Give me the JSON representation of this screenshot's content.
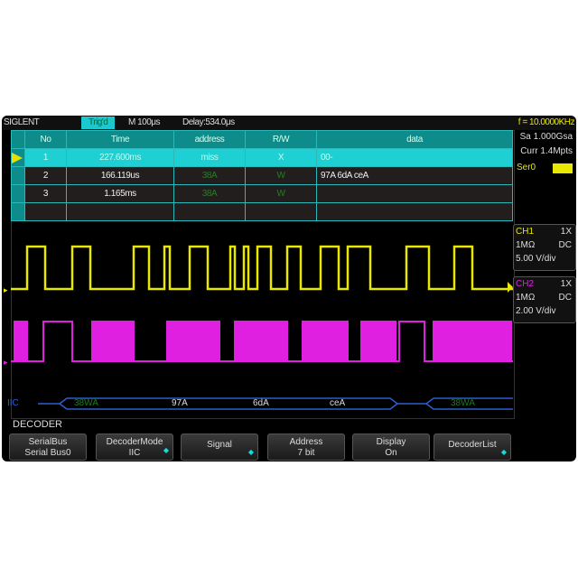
{
  "header": {
    "brand": "SIGLENT",
    "trig": "Trig'd",
    "timebase": "M 100μs",
    "delay": "Delay:534.0μs",
    "freq": "f = 10.0000KHz"
  },
  "table": {
    "headers": [
      "No",
      "Time",
      "address",
      "R/W",
      "data"
    ],
    "rows": [
      [
        "1",
        "227.600ms",
        "miss",
        "X",
        "00-"
      ],
      [
        "2",
        "166.119us",
        "38A",
        "W",
        "97A 6dA ceA"
      ],
      [
        "3",
        "1.165ms",
        "38A",
        "W",
        ""
      ]
    ]
  },
  "right": {
    "sa": "Sa 1.000Gsa",
    "curr": "Curr 1.4Mpts",
    "ser": "Ser0",
    "ch1": {
      "name": "CH1",
      "probe": "1X",
      "imp": "1MΩ",
      "coupling": "DC",
      "scale": "5.00 V/div"
    },
    "ch2": {
      "name": "CH2",
      "probe": "1X",
      "imp": "1MΩ",
      "coupling": "DC",
      "scale": "2.00 V/div"
    }
  },
  "bus": {
    "label": "IIC",
    "segments": [
      "38WA",
      "97A",
      "6dA",
      "ceA",
      "38WA"
    ]
  },
  "colors": {
    "ch1": "#e8e800",
    "ch2": "#e020e0",
    "bus": "#2a5fd0",
    "accent": "#1cc8d0"
  },
  "menu": {
    "title": "DECODER",
    "buttons": [
      [
        "SerialBus",
        "Serial Bus0"
      ],
      [
        "DecoderMode",
        "IIC"
      ],
      [
        "Signal",
        ""
      ],
      [
        "Address",
        "7 bit"
      ],
      [
        "Display",
        "On"
      ],
      [
        "DecoderList",
        ""
      ]
    ]
  }
}
